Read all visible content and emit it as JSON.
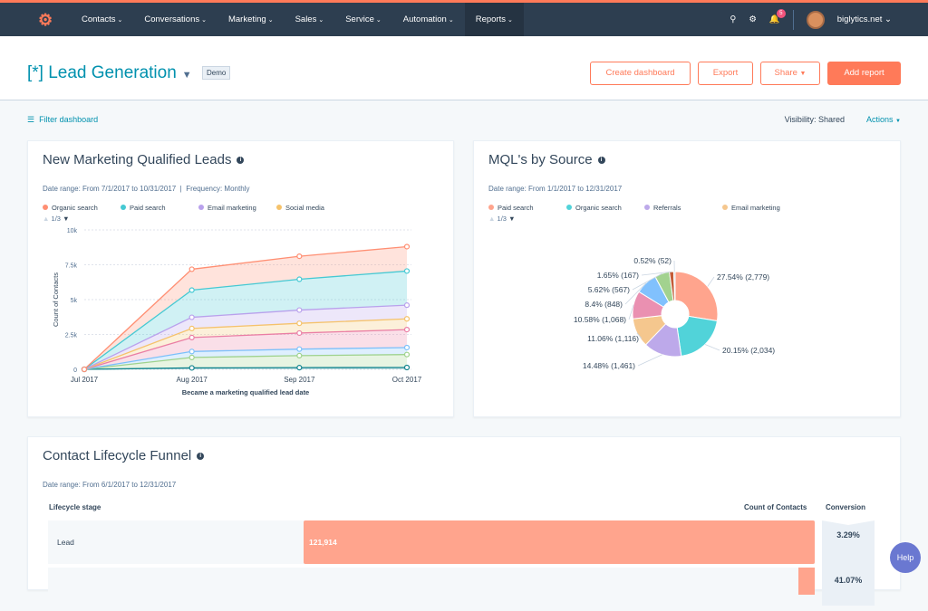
{
  "nav": {
    "logo": "hubspot-logo",
    "items": [
      "Contacts",
      "Conversations",
      "Marketing",
      "Sales",
      "Service",
      "Automation",
      "Reports"
    ],
    "active": "Reports",
    "notifications": "5",
    "account": "biglytics.net"
  },
  "header": {
    "title": "[*] Lead Generation",
    "badge": "Demo",
    "create": "Create dashboard",
    "export": "Export",
    "share": "Share",
    "add": "Add report"
  },
  "toolbar": {
    "filter": "Filter dashboard",
    "visibility_label": "Visibility:",
    "visibility": "Shared",
    "actions": "Actions"
  },
  "colors": {
    "accent": "#ff7a59",
    "link": "#0091ae",
    "nav": "#2d3e50"
  },
  "mql": {
    "title": "New Marketing Qualified Leads",
    "date_range": "Date range: From 7/1/2017 to 10/31/2017",
    "frequency": "Frequency: Monthly",
    "pager": "1/3"
  },
  "source": {
    "title": "MQL's by Source",
    "date_range": "Date range: From 1/1/2017 to 12/31/2017",
    "pager": "1/3"
  },
  "funnel": {
    "title": "Contact Lifecycle Funnel",
    "date_range": "Date range: From 6/1/2017 to 12/31/2017",
    "col_stage": "Lifecycle stage",
    "col_count": "Count of Contacts",
    "col_conv": "Conversion",
    "rows": [
      {
        "stage": "Lead",
        "count": "121,914",
        "conversion": "3.29%"
      },
      {
        "stage": "",
        "count": "",
        "conversion": "41.07%"
      }
    ]
  },
  "help": "Help",
  "chart_data": [
    {
      "type": "area",
      "stacked": true,
      "x": [
        "Jul 2017",
        "Aug 2017",
        "Sep 2017",
        "Oct 2017"
      ],
      "xlabel": "Became a marketing qualified lead date",
      "ylabel": "Count of Contacts",
      "ylim": [
        0,
        10000
      ],
      "yticks": [
        "0",
        "2.5k",
        "5k",
        "7.5k",
        "10k"
      ],
      "ytick_values": [
        0,
        2500,
        5000,
        7500,
        10000
      ],
      "grid": true,
      "legend": "top",
      "series": [
        {
          "name": "Organic search",
          "color": "#ff8f73",
          "values": [
            0,
            1500,
            1650,
            1750
          ]
        },
        {
          "name": "Paid search",
          "color": "#45c9d3",
          "values": [
            0,
            1950,
            2210,
            2450
          ]
        },
        {
          "name": "Email marketing",
          "color": "#b9a1ec",
          "values": [
            0,
            800,
            950,
            980
          ]
        },
        {
          "name": "Social media",
          "color": "#f5c26b",
          "values": [
            0,
            650,
            700,
            770
          ]
        },
        {
          "color": "#ea7ea4",
          "values": [
            0,
            1000,
            1150,
            1290
          ]
        },
        {
          "color": "#7cc0fa",
          "values": [
            0,
            430,
            470,
            500
          ]
        },
        {
          "color": "#9ed28d",
          "values": [
            0,
            750,
            860,
            930
          ]
        },
        {
          "color": "#12848e",
          "values": [
            0,
            100,
            120,
            130
          ]
        }
      ]
    },
    {
      "type": "pie",
      "donut": true,
      "legend": "top",
      "slices": [
        {
          "name": "Paid search",
          "color": "#ffa48d",
          "percent": 27.54,
          "value": 2779,
          "label": "27.54% (2,779)"
        },
        {
          "name": "Organic search",
          "color": "#51d3d9",
          "percent": 20.15,
          "value": 2034,
          "label": "20.15% (2,034)"
        },
        {
          "name": "Referrals",
          "color": "#bda9ea",
          "percent": 14.48,
          "value": 1461,
          "label": "14.48% (1,461)"
        },
        {
          "name": "Email marketing",
          "color": "#f5c78e",
          "percent": 11.06,
          "value": 1116,
          "label": "11.06% (1,116)"
        },
        {
          "color": "#ea90b1",
          "percent": 10.58,
          "value": 1068,
          "label": "10.58% (1,068)"
        },
        {
          "color": "#81c1fd",
          "percent": 8.4,
          "value": 848,
          "label": "8.4% (848)"
        },
        {
          "color": "#a2d28f",
          "percent": 5.62,
          "value": 567,
          "label": "5.62% (567)"
        },
        {
          "color": "#c35c38",
          "percent": 1.65,
          "value": 167,
          "label": "1.65% (167)"
        },
        {
          "color": "#b8c7d6",
          "percent": 0.52,
          "value": 52,
          "label": "0.52% (52)"
        }
      ]
    }
  ]
}
